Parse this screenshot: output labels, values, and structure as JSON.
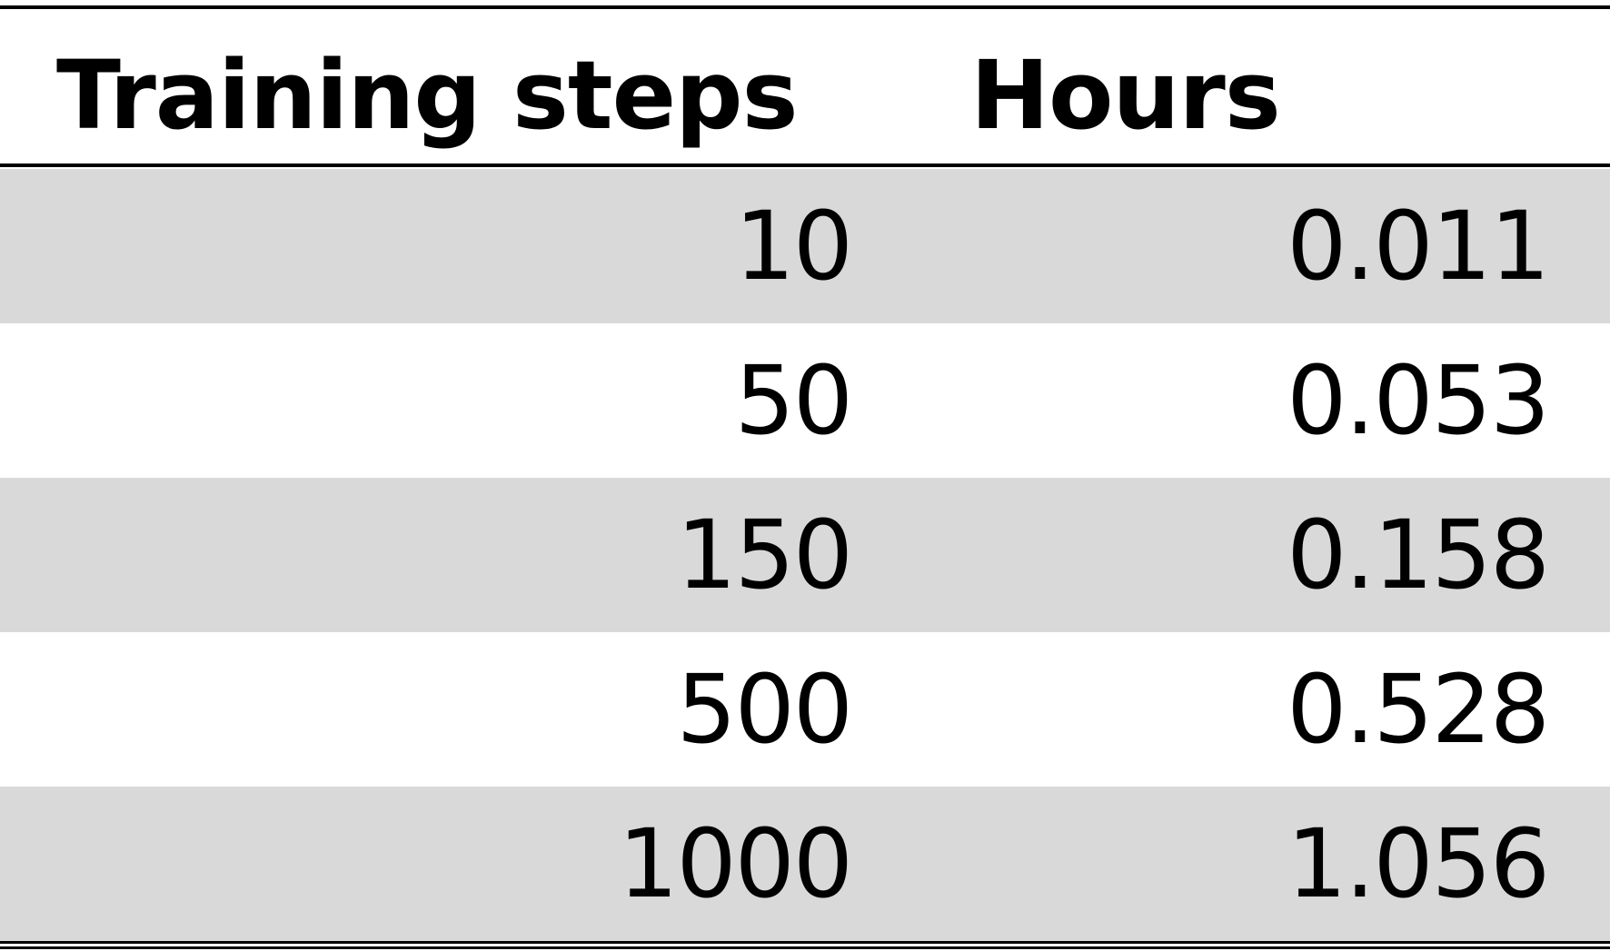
{
  "table": {
    "headers": {
      "steps": "Training steps",
      "hours": "Hours"
    },
    "rows": [
      {
        "steps": "10",
        "hours": "0.011"
      },
      {
        "steps": "50",
        "hours": "0.053"
      },
      {
        "steps": "150",
        "hours": "0.158"
      },
      {
        "steps": "500",
        "hours": "0.528"
      },
      {
        "steps": "1000",
        "hours": "1.056"
      }
    ],
    "colors": {
      "shaded_row": "#d9d9d9",
      "rule": "#000000"
    }
  }
}
